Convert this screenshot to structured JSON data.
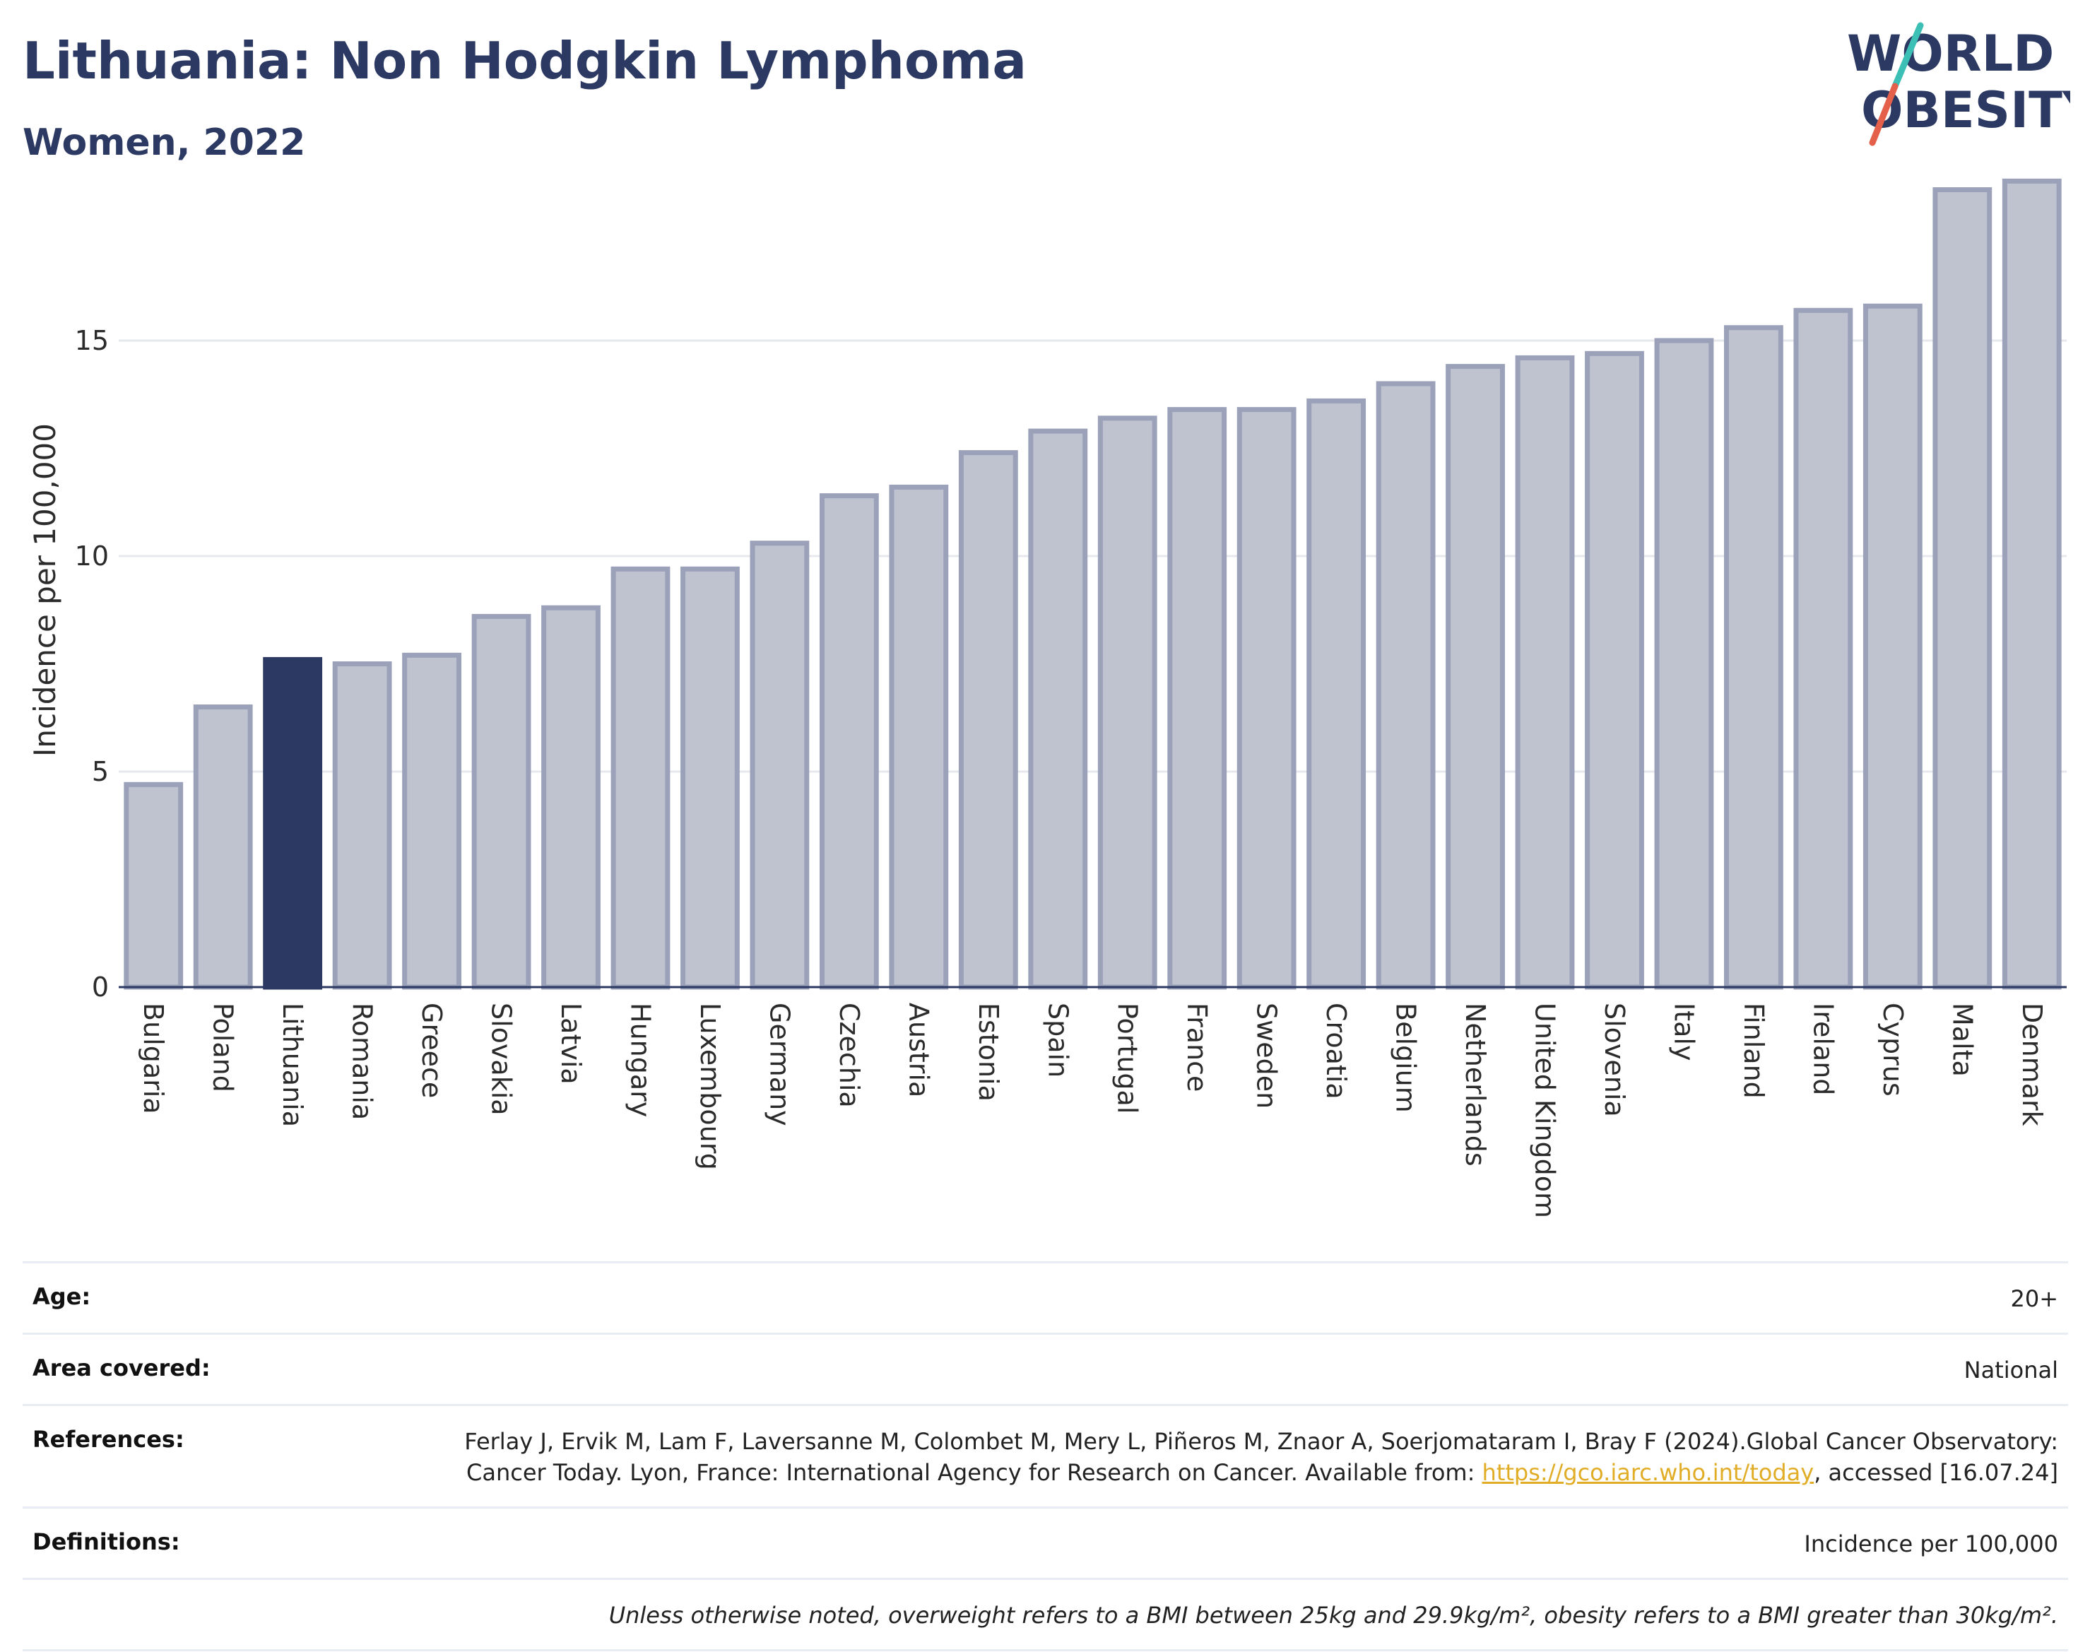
{
  "header": {
    "title": "Lithuania: Non Hodgkin Lymphoma",
    "subtitle": "Women, 2022"
  },
  "logo": {
    "line1": "WORLD",
    "line2": "OBESITY",
    "colors": {
      "text": "#2b3963",
      "slash_teal": "#3cbfb4",
      "slash_red": "#e5604a"
    }
  },
  "chart_data": {
    "type": "bar",
    "title": "Lithuania: Non Hodgkin Lymphoma",
    "subtitle": "Women, 2022",
    "xlabel": "",
    "ylabel": "Incidence per 100,000",
    "ylim": [
      0,
      19
    ],
    "yticks": [
      0,
      5,
      10,
      15
    ],
    "grid": true,
    "highlight": "Lithuania",
    "colors": {
      "bar": "#bfc3d0",
      "bar_border": "#9aa1b9",
      "highlight": "#2b3963"
    },
    "categories": [
      "Bulgaria",
      "Poland",
      "Lithuania",
      "Romania",
      "Greece",
      "Slovakia",
      "Latvia",
      "Hungary",
      "Luxembourg",
      "Germany",
      "Czechia",
      "Austria",
      "Estonia",
      "Spain",
      "Portugal",
      "France",
      "Sweden",
      "Croatia",
      "Belgium",
      "Netherlands",
      "United Kingdom",
      "Slovenia",
      "Italy",
      "Finland",
      "Ireland",
      "Cyprus",
      "Malta",
      "Denmark"
    ],
    "values": [
      4.7,
      6.5,
      7.6,
      7.5,
      7.7,
      8.6,
      8.8,
      9.7,
      9.7,
      10.3,
      11.4,
      11.6,
      12.4,
      12.9,
      13.2,
      13.4,
      13.4,
      13.6,
      14.0,
      14.4,
      14.6,
      14.7,
      15.0,
      15.3,
      15.7,
      15.8,
      18.5,
      18.7
    ]
  },
  "info": {
    "age_label": "Age:",
    "age_value": "20+",
    "area_label": "Area covered:",
    "area_value": "National",
    "references_label": "References:",
    "references_text_1": "Ferlay J, Ervik M, Lam F, Laversanne M, Colombet M, Mery L, Piñeros M, Znaor A, Soerjomataram I, Bray F (2024).Global Cancer Observatory: Cancer Today. Lyon, France: International Agency for Research on Cancer. Available from: ",
    "references_link": "https://gco.iarc.who.int/today",
    "references_text_2": ", accessed [16.07.24]",
    "definitions_label": "Definitions:",
    "definitions_value": "Incidence per 100,000",
    "note": "Unless otherwise noted, overweight refers to a BMI between 25kg and 29.9kg/m², obesity refers to a BMI greater than 30kg/m²."
  }
}
